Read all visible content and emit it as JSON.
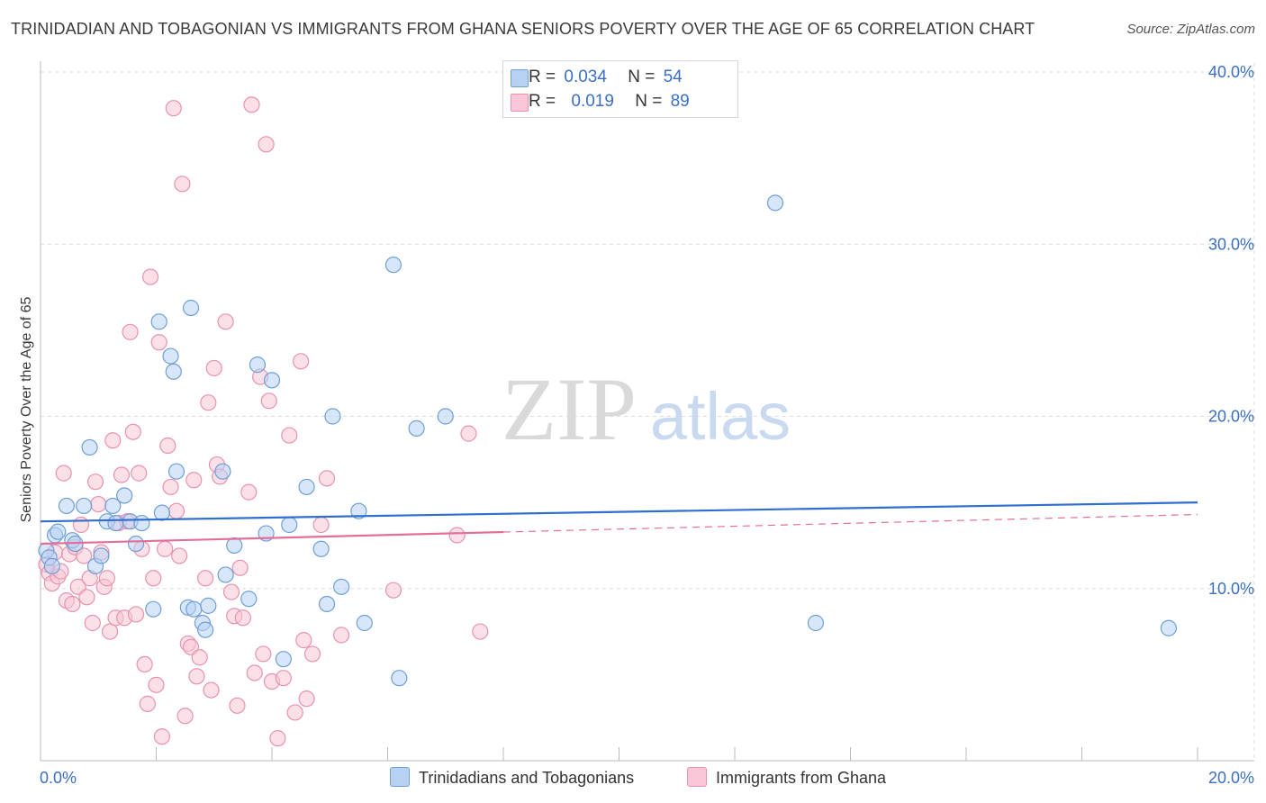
{
  "title": "TRINIDADIAN AND TOBAGONIAN VS IMMIGRANTS FROM GHANA SENIORS POVERTY OVER THE AGE OF 65 CORRELATION CHART",
  "source": "Source: ZipAtlas.com",
  "watermark": {
    "zip": "ZIP",
    "atlas": "atlas"
  },
  "legend_top": [
    {
      "r_label": "R =",
      "r_value": "0.034",
      "n_label": "N =",
      "n_value": "54"
    },
    {
      "r_label": "R =",
      "r_value": "0.019",
      "n_label": "N =",
      "n_value": "89"
    }
  ],
  "colors": {
    "blue_fill": "#b7d1f2",
    "blue_stroke": "#6f9fd8",
    "blue_line": "#2f6fcf",
    "pink_fill": "#f8c6d6",
    "pink_stroke": "#e992ae",
    "pink_line": "#e36f98",
    "axis_label": "#3a6fc4",
    "grid": "#dddddd"
  },
  "chart_data": {
    "type": "scatter",
    "title": "TRINIDADIAN AND TOBAGONIAN VS IMMIGRANTS FROM GHANA SENIORS POVERTY OVER THE AGE OF 65 CORRELATION CHART",
    "xlabel": "",
    "ylabel": "Seniors Poverty Over the Age of 65",
    "xlim": [
      0,
      20
    ],
    "ylim": [
      0,
      40
    ],
    "x_tick_labels": [
      "0.0%",
      "20.0%"
    ],
    "y_ticks": [
      10,
      20,
      30,
      40
    ],
    "y_tick_labels": [
      "10.0%",
      "20.0%",
      "30.0%",
      "40.0%"
    ],
    "series": [
      {
        "name": "Trinidadians and Tobagonians",
        "color": "blue",
        "R": 0.034,
        "N": 54,
        "trend": {
          "x0": 0,
          "y0": 13.9,
          "x1": 20,
          "y1": 15.0,
          "dashed_from": null
        },
        "points": [
          [
            0.1,
            12.2
          ],
          [
            0.15,
            11.8
          ],
          [
            0.2,
            11.3
          ],
          [
            0.25,
            13.1
          ],
          [
            0.3,
            13.3
          ],
          [
            0.45,
            14.8
          ],
          [
            0.55,
            12.8
          ],
          [
            0.6,
            12.6
          ],
          [
            0.75,
            14.8
          ],
          [
            0.85,
            18.2
          ],
          [
            0.95,
            11.3
          ],
          [
            1.05,
            11.9
          ],
          [
            1.15,
            13.9
          ],
          [
            1.25,
            14.8
          ],
          [
            1.3,
            13.8
          ],
          [
            1.45,
            15.4
          ],
          [
            1.55,
            13.9
          ],
          [
            1.65,
            12.6
          ],
          [
            1.75,
            13.8
          ],
          [
            1.95,
            8.8
          ],
          [
            2.05,
            25.5
          ],
          [
            2.1,
            14.4
          ],
          [
            2.25,
            23.5
          ],
          [
            2.3,
            22.6
          ],
          [
            2.35,
            16.8
          ],
          [
            2.55,
            8.9
          ],
          [
            2.6,
            26.3
          ],
          [
            2.65,
            8.8
          ],
          [
            2.8,
            8.0
          ],
          [
            2.85,
            7.6
          ],
          [
            2.9,
            9.0
          ],
          [
            3.15,
            16.8
          ],
          [
            3.2,
            10.8
          ],
          [
            3.35,
            12.5
          ],
          [
            3.6,
            9.4
          ],
          [
            3.75,
            23.0
          ],
          [
            3.9,
            13.2
          ],
          [
            4.0,
            22.1
          ],
          [
            4.2,
            5.9
          ],
          [
            4.3,
            13.7
          ],
          [
            4.6,
            15.9
          ],
          [
            4.85,
            12.3
          ],
          [
            4.95,
            9.1
          ],
          [
            5.05,
            20.0
          ],
          [
            5.2,
            10.1
          ],
          [
            5.5,
            14.5
          ],
          [
            5.6,
            8.0
          ],
          [
            6.1,
            28.8
          ],
          [
            6.2,
            4.8
          ],
          [
            6.5,
            19.3
          ],
          [
            7.0,
            20.0
          ],
          [
            12.7,
            32.4
          ],
          [
            13.4,
            8.0
          ],
          [
            19.5,
            7.7
          ]
        ]
      },
      {
        "name": "Immigrants from Ghana",
        "color": "pink",
        "R": 0.019,
        "N": 89,
        "trend": {
          "x0": 0,
          "y0": 12.6,
          "x1": 20,
          "y1": 14.3,
          "dashed_from": 8.0
        },
        "points": [
          [
            0.1,
            11.4
          ],
          [
            0.15,
            10.9
          ],
          [
            0.2,
            10.3
          ],
          [
            0.25,
            12.1
          ],
          [
            0.3,
            10.7
          ],
          [
            0.35,
            11.0
          ],
          [
            0.4,
            16.7
          ],
          [
            0.45,
            9.3
          ],
          [
            0.5,
            12.0
          ],
          [
            0.55,
            9.1
          ],
          [
            0.6,
            12.4
          ],
          [
            0.65,
            10.1
          ],
          [
            0.7,
            13.7
          ],
          [
            0.75,
            11.9
          ],
          [
            0.8,
            9.5
          ],
          [
            0.85,
            10.6
          ],
          [
            0.9,
            8.0
          ],
          [
            0.95,
            16.2
          ],
          [
            1.0,
            14.9
          ],
          [
            1.05,
            12.1
          ],
          [
            1.1,
            10.1
          ],
          [
            1.15,
            10.6
          ],
          [
            1.2,
            7.5
          ],
          [
            1.25,
            18.6
          ],
          [
            1.3,
            8.3
          ],
          [
            1.35,
            13.8
          ],
          [
            1.4,
            16.6
          ],
          [
            1.45,
            8.3
          ],
          [
            1.5,
            13.9
          ],
          [
            1.55,
            24.9
          ],
          [
            1.6,
            19.1
          ],
          [
            1.65,
            8.5
          ],
          [
            1.7,
            16.7
          ],
          [
            1.75,
            12.3
          ],
          [
            1.8,
            5.6
          ],
          [
            1.85,
            3.3
          ],
          [
            1.9,
            28.1
          ],
          [
            1.95,
            10.6
          ],
          [
            2.0,
            4.4
          ],
          [
            2.05,
            24.3
          ],
          [
            2.1,
            1.4
          ],
          [
            2.15,
            12.3
          ],
          [
            2.2,
            18.3
          ],
          [
            2.25,
            15.9
          ],
          [
            2.3,
            37.9
          ],
          [
            2.35,
            14.5
          ],
          [
            2.4,
            11.9
          ],
          [
            2.45,
            33.5
          ],
          [
            2.5,
            2.6
          ],
          [
            2.55,
            6.8
          ],
          [
            2.6,
            6.6
          ],
          [
            2.65,
            16.3
          ],
          [
            2.7,
            4.9
          ],
          [
            2.75,
            6.0
          ],
          [
            2.85,
            10.6
          ],
          [
            2.9,
            20.8
          ],
          [
            2.95,
            4.1
          ],
          [
            3.0,
            22.8
          ],
          [
            3.05,
            17.2
          ],
          [
            3.1,
            16.5
          ],
          [
            3.2,
            25.5
          ],
          [
            3.3,
            9.8
          ],
          [
            3.35,
            8.4
          ],
          [
            3.4,
            3.2
          ],
          [
            3.45,
            11.2
          ],
          [
            3.5,
            8.3
          ],
          [
            3.6,
            15.6
          ],
          [
            3.65,
            38.1
          ],
          [
            3.7,
            5.1
          ],
          [
            3.8,
            22.3
          ],
          [
            3.85,
            6.2
          ],
          [
            3.9,
            35.8
          ],
          [
            3.95,
            20.9
          ],
          [
            4.0,
            4.6
          ],
          [
            4.1,
            1.3
          ],
          [
            4.2,
            4.8
          ],
          [
            4.3,
            18.9
          ],
          [
            4.4,
            2.8
          ],
          [
            4.5,
            23.2
          ],
          [
            4.55,
            7.0
          ],
          [
            4.6,
            3.6
          ],
          [
            4.7,
            6.2
          ],
          [
            4.85,
            13.7
          ],
          [
            4.95,
            16.4
          ],
          [
            5.2,
            7.3
          ],
          [
            6.1,
            9.9
          ],
          [
            7.2,
            13.1
          ],
          [
            7.4,
            19.0
          ],
          [
            7.6,
            7.5
          ]
        ]
      }
    ]
  },
  "bottom_legend": [
    {
      "label": "Trinidadians and Tobagonians"
    },
    {
      "label": "Immigrants from Ghana"
    }
  ]
}
